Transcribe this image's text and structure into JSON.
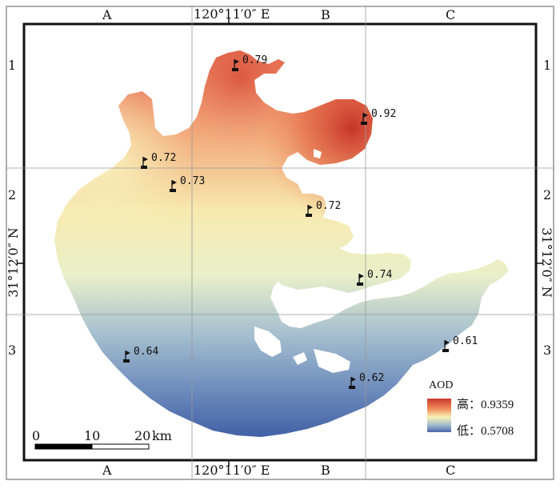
{
  "frame": {
    "top_cols": [
      "A",
      "B",
      "C"
    ],
    "bottom_cols": [
      "A",
      "B",
      "C"
    ],
    "left_rows": [
      "1",
      "2",
      "3"
    ],
    "right_rows": [
      "1",
      "2",
      "3"
    ],
    "lon_label": "120°11′0″ E",
    "lat_label": "31°12′0″ N"
  },
  "stations": [
    {
      "id": "s1",
      "value": "0.79"
    },
    {
      "id": "s2",
      "value": "0.92"
    },
    {
      "id": "s3",
      "value": "0.72"
    },
    {
      "id": "s4",
      "value": "0.73"
    },
    {
      "id": "s5",
      "value": "0.72"
    },
    {
      "id": "s6",
      "value": "0.74"
    },
    {
      "id": "s7",
      "value": "0.64"
    },
    {
      "id": "s8",
      "value": "0.61"
    },
    {
      "id": "s9",
      "value": "0.62"
    }
  ],
  "legend": {
    "title": "AOD",
    "high_label": "高：0.9359",
    "low_label": "低：0.5708",
    "high_color": "#c83a2d",
    "mid_color": "#f7f3b5",
    "low_color": "#4a66a6"
  },
  "scalebar": {
    "ticks": [
      "0",
      "10",
      "20"
    ],
    "unit": "km"
  }
}
